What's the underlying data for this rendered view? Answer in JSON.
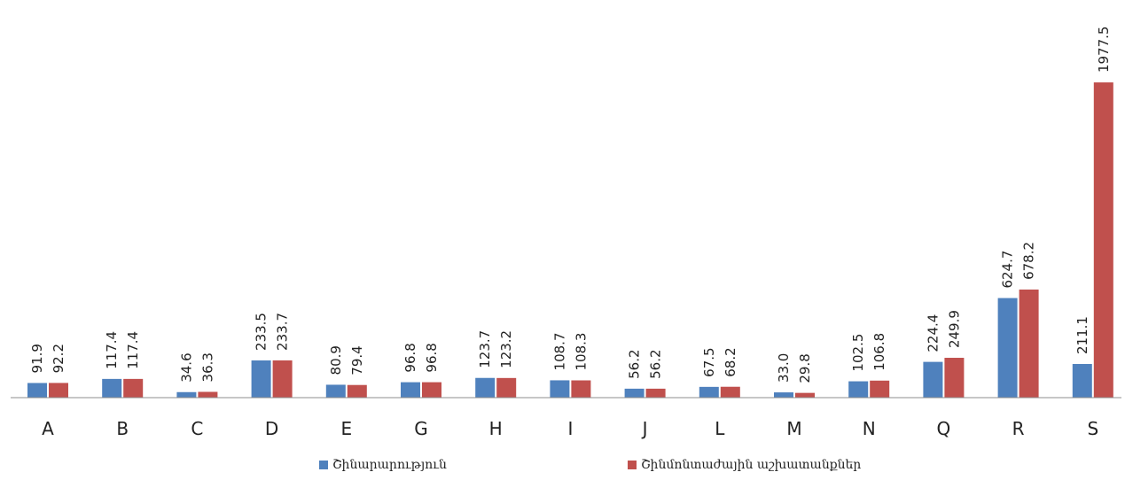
{
  "chart_data": {
    "type": "bar",
    "categories": [
      "A",
      "B",
      "C",
      "D",
      "E",
      "G",
      "H",
      "I",
      "J",
      "L",
      "M",
      "N",
      "Q",
      "R",
      "S"
    ],
    "series": [
      {
        "name": "Շինարարություն",
        "color": "#4F81BD",
        "values": [
          91.9,
          117.4,
          34.6,
          233.5,
          80.9,
          96.8,
          123.7,
          108.7,
          56.2,
          67.5,
          33.0,
          102.5,
          224.4,
          624.7,
          211.1
        ],
        "labels": [
          "91.9",
          "117.4",
          "34.6",
          "233.5",
          "80.9",
          "96.8",
          "123.7",
          "108.7",
          "56.2",
          "67.5",
          "33.0",
          "102.5",
          "224.4",
          "624.7",
          "211.1"
        ]
      },
      {
        "name": "Շինմոնտաժային աշխատանքներ",
        "color": "#C0504D",
        "values": [
          92.2,
          117.4,
          36.3,
          233.7,
          79.4,
          96.8,
          123.2,
          108.3,
          56.2,
          68.2,
          29.8,
          106.8,
          249.9,
          678.2,
          1977.5
        ],
        "labels": [
          "92.2",
          "117.4",
          "36.3",
          "233.7",
          "79.4",
          "96.8",
          "123.2",
          "108.3",
          "56.2",
          "68.2",
          "29.8",
          "106.8",
          "249.9",
          "678.2",
          "1977.5"
        ]
      }
    ],
    "ylim": [
      0,
      2000
    ],
    "grid": false,
    "legend_position": "bottom",
    "data_labels": "rotated-vertical"
  }
}
